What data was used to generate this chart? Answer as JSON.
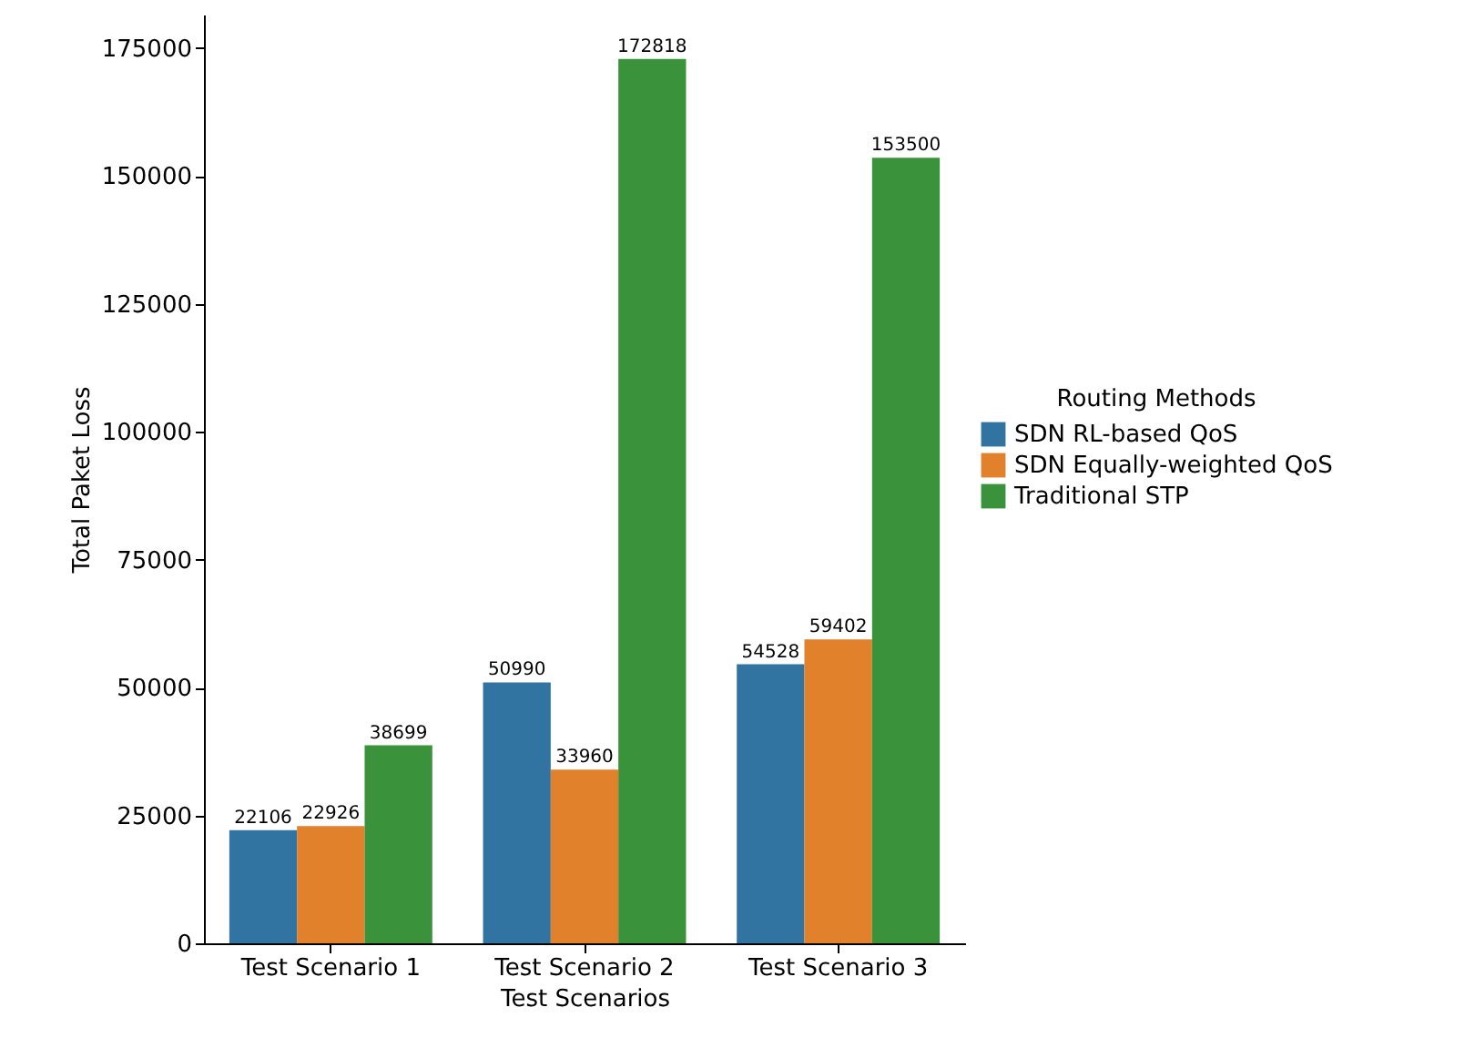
{
  "chart_data": {
    "type": "bar",
    "xlabel": "Test Scenarios",
    "ylabel": "Total Paket Loss",
    "legend_title": "Routing Methods",
    "legend": "right",
    "categories": [
      "Test Scenario 1",
      "Test Scenario 2",
      "Test Scenario 3"
    ],
    "series": [
      {
        "name": "SDN RL-based QoS",
        "color": "#3274a1",
        "values": [
          22106,
          50990,
          54528
        ]
      },
      {
        "name": "SDN Equally-weighted QoS",
        "color": "#e1812c",
        "values": [
          22926,
          33960,
          59402
        ]
      },
      {
        "name": "Traditional STP",
        "color": "#3a923a",
        "values": [
          38699,
          172818,
          153500
        ]
      }
    ],
    "ylim": [
      0,
      181500
    ],
    "yticks": [
      0,
      25000,
      50000,
      75000,
      100000,
      125000,
      150000,
      175000
    ],
    "data_labels": true
  }
}
